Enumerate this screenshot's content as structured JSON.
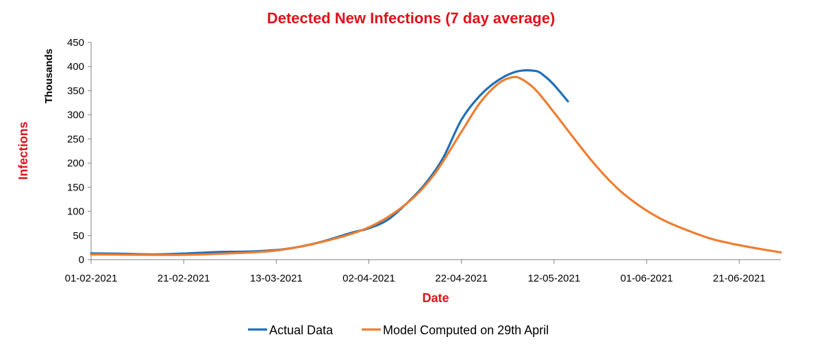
{
  "chart_data": {
    "type": "line",
    "title": "Detected New Infections (7 day average)",
    "xlabel": "Date",
    "ylabel": "Infections",
    "yunit_label": "Thousands",
    "ylim": [
      0,
      450
    ],
    "yticks": [
      0,
      50,
      100,
      150,
      200,
      250,
      300,
      350,
      400,
      450
    ],
    "xlim": [
      "01-02-2021",
      "30-06-2021"
    ],
    "xticks": [
      "01-02-2021",
      "21-02-2021",
      "13-03-2021",
      "02-04-2021",
      "22-04-2021",
      "12-05-2021",
      "01-06-2021",
      "21-06-2021"
    ],
    "grid": false,
    "legend_position": "bottom",
    "colors": {
      "title": "#e0101a",
      "axis_title": "#e0101a",
      "actual": "#1f6fb8",
      "model": "#ee7d31",
      "axis": "#7f7f7f"
    },
    "series": [
      {
        "name": "Actual Data",
        "color": "#1f6fb8",
        "points": [
          [
            "01-02-2021",
            13
          ],
          [
            "08-02-2021",
            12
          ],
          [
            "15-02-2021",
            11
          ],
          [
            "22-02-2021",
            13
          ],
          [
            "01-03-2021",
            16
          ],
          [
            "08-03-2021",
            17
          ],
          [
            "15-03-2021",
            22
          ],
          [
            "22-03-2021",
            35
          ],
          [
            "29-03-2021",
            55
          ],
          [
            "02-04-2021",
            65
          ],
          [
            "06-04-2021",
            82
          ],
          [
            "10-04-2021",
            115
          ],
          [
            "14-04-2021",
            155
          ],
          [
            "18-04-2021",
            210
          ],
          [
            "22-04-2021",
            290
          ],
          [
            "26-04-2021",
            340
          ],
          [
            "30-04-2021",
            372
          ],
          [
            "04-05-2021",
            390
          ],
          [
            "08-05-2021",
            391
          ],
          [
            "10-05-2021",
            380
          ],
          [
            "12-05-2021",
            362
          ],
          [
            "15-05-2021",
            328
          ]
        ]
      },
      {
        "name": "Model Computed on 29th April",
        "color": "#ee7d31",
        "points": [
          [
            "01-02-2021",
            11
          ],
          [
            "11-02-2021",
            10
          ],
          [
            "21-02-2021",
            10
          ],
          [
            "03-03-2021",
            13
          ],
          [
            "13-03-2021",
            19
          ],
          [
            "23-03-2021",
            37
          ],
          [
            "02-04-2021",
            67
          ],
          [
            "10-04-2021",
            115
          ],
          [
            "16-04-2021",
            175
          ],
          [
            "22-04-2021",
            265
          ],
          [
            "26-04-2021",
            325
          ],
          [
            "30-04-2021",
            365
          ],
          [
            "03-05-2021",
            378
          ],
          [
            "05-05-2021",
            374
          ],
          [
            "08-05-2021",
            352
          ],
          [
            "12-05-2021",
            305
          ],
          [
            "16-05-2021",
            255
          ],
          [
            "21-05-2021",
            195
          ],
          [
            "26-05-2021",
            145
          ],
          [
            "31-05-2021",
            108
          ],
          [
            "05-06-2021",
            80
          ],
          [
            "10-06-2021",
            60
          ],
          [
            "15-06-2021",
            43
          ],
          [
            "20-06-2021",
            32
          ],
          [
            "25-06-2021",
            23
          ],
          [
            "30-06-2021",
            15
          ]
        ]
      }
    ]
  }
}
